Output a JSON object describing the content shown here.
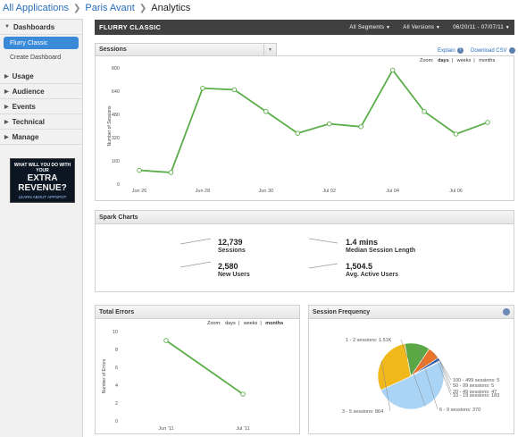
{
  "breadcrumb": {
    "item1": "All Applications",
    "item2": "Paris Avant",
    "current": "Analytics"
  },
  "sidebar": {
    "dashboards_label": "Dashboards",
    "items": [
      "Flurry Classic",
      "Create Dashboard"
    ],
    "sections": [
      "Usage",
      "Audience",
      "Events",
      "Technical",
      "Manage"
    ],
    "ad": {
      "line1": "WHAT WILL YOU DO WITH YOUR",
      "line2": "EXTRA REVENUE?",
      "line3": "LEARN ABOUT APPSPOT"
    }
  },
  "titlebar": {
    "title": "FLURRY CLASSIC",
    "segments": "All Segments",
    "versions": "All Versions",
    "date_range": "06/20/11 - 07/07/11"
  },
  "sessions": {
    "title": "Sessions",
    "explain": "Explain",
    "download": "Download CSV",
    "zoom_label": "Zoom:",
    "zoom_options": [
      "days",
      "weeks",
      "months"
    ]
  },
  "spark_charts": {
    "title": "Spark Charts",
    "items": [
      {
        "value": "12,739",
        "label": "Sessions"
      },
      {
        "value": "1.4 mins",
        "label": "Median Session Length"
      },
      {
        "value": "2,580",
        "label": "New Users"
      },
      {
        "value": "1,504.5",
        "label": "Avg. Active Users"
      }
    ]
  },
  "total_errors": {
    "title": "Total Errors",
    "zoom_label": "Zoom:",
    "zoom_options": [
      "days",
      "weeks",
      "months"
    ]
  },
  "session_frequency": {
    "title": "Session Frequency"
  },
  "colors": {
    "line": "#5cae4a",
    "accent": "#3b8ad7",
    "titlebar": "#404040"
  },
  "chart_data": [
    {
      "type": "line",
      "title": "Sessions",
      "ylabel": "Number of Sessions",
      "ylim": [
        0,
        800
      ],
      "yticks": [
        0,
        160,
        320,
        480,
        640,
        800
      ],
      "xticks": [
        "Jun 26",
        "Jun 28",
        "Jun 30",
        "Jul 02",
        "Jul 04",
        "Jul 06"
      ],
      "series": [
        {
          "values": [
            95,
            80,
            660,
            650,
            500,
            350,
            415,
            395,
            785,
            500,
            345,
            425
          ]
        }
      ],
      "x": [
        "Jun 26",
        "Jun 27",
        "Jun 28",
        "Jun 29",
        "Jun 30",
        "Jul 01",
        "Jul 02",
        "Jul 03",
        "Jul 04",
        "Jul 05",
        "Jul 06",
        "Jul 07"
      ]
    },
    {
      "type": "line",
      "title": "Total Errors",
      "ylabel": "Number of Errors",
      "ylim": [
        0,
        10
      ],
      "yticks": [
        0,
        2,
        4,
        6,
        8,
        10
      ],
      "categories": [
        "Jun '11",
        "Jul '11"
      ],
      "series": [
        {
          "values": [
            9,
            3
          ]
        }
      ]
    },
    {
      "type": "pie",
      "title": "Session Frequency",
      "slices": [
        {
          "label": "1 - 2 sessions: 1.51K",
          "value": 1510,
          "color": "#aad4f5"
        },
        {
          "label": "3 - 5 sessions: 864",
          "value": 864,
          "color": "#f1b81b"
        },
        {
          "label": "6 - 9 sessions: 370",
          "value": 370,
          "color": "#5aa844"
        },
        {
          "label": "10 - 19 sessions: 183",
          "value": 183,
          "color": "#e8742c"
        },
        {
          "label": "20 - 49 sessions: 47",
          "value": 47,
          "color": "#2f5fa8"
        },
        {
          "label": "50 - 99 sessions: 5",
          "value": 5,
          "color": "#cc3333"
        },
        {
          "label": "100 - 499 sessions: 5",
          "value": 5,
          "color": "#8a5cb8"
        }
      ]
    }
  ]
}
